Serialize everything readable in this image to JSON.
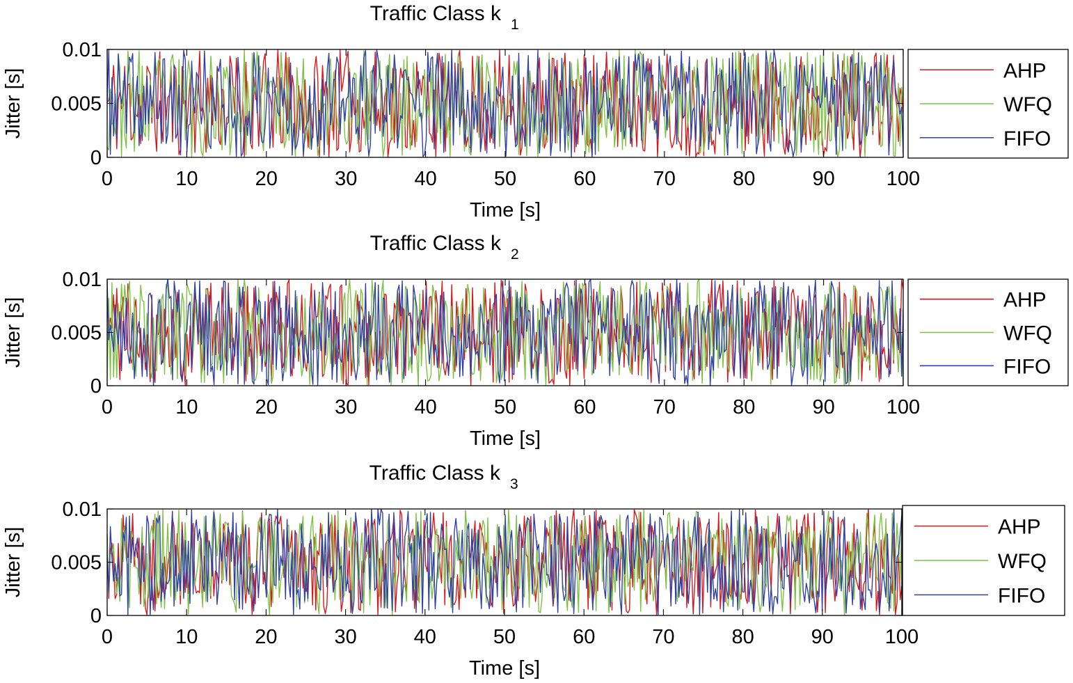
{
  "chart_data": [
    {
      "type": "line",
      "title": "Traffic Class k",
      "title_subscript": "1",
      "xlabel": "Time [s]",
      "ylabel": "Jitter [s]",
      "xlim": [
        0,
        100
      ],
      "ylim": [
        0,
        0.01
      ],
      "x_ticks": [
        "0",
        "10",
        "20",
        "30",
        "40",
        "50",
        "60",
        "70",
        "80",
        "90",
        "100"
      ],
      "y_ticks": [
        "0",
        "0.005",
        "0.01"
      ],
      "grid": false,
      "legend_position": "right",
      "samples_per_series": 500,
      "series": [
        {
          "name": "AHP",
          "color": "#d7191c",
          "seed": 11,
          "distribution": "uniform",
          "min": 0,
          "max": 0.01
        },
        {
          "name": "WFQ",
          "color": "#7dc242",
          "seed": 23,
          "distribution": "uniform",
          "min": 0,
          "max": 0.01
        },
        {
          "name": "FIFO",
          "color": "#3040a8",
          "seed": 37,
          "distribution": "uniform",
          "min": 0,
          "max": 0.01
        }
      ]
    },
    {
      "type": "line",
      "title": "Traffic Class k",
      "title_subscript": "2",
      "xlabel": "Time [s]",
      "ylabel": "Jitter [s]",
      "xlim": [
        0,
        100
      ],
      "ylim": [
        0,
        0.01
      ],
      "x_ticks": [
        "0",
        "10",
        "20",
        "30",
        "40",
        "50",
        "60",
        "70",
        "80",
        "90",
        "100"
      ],
      "y_ticks": [
        "0",
        "0.005",
        "0.01"
      ],
      "grid": false,
      "legend_position": "right",
      "samples_per_series": 500,
      "series": [
        {
          "name": "AHP",
          "color": "#d7191c",
          "seed": 41,
          "distribution": "uniform",
          "min": 0,
          "max": 0.01
        },
        {
          "name": "WFQ",
          "color": "#7dc242",
          "seed": 53,
          "distribution": "uniform",
          "min": 0,
          "max": 0.01
        },
        {
          "name": "FIFO",
          "color": "#3040a8",
          "seed": 67,
          "distribution": "uniform",
          "min": 0,
          "max": 0.01
        }
      ]
    },
    {
      "type": "line",
      "title": "Traffic Class k",
      "title_subscript": "3",
      "xlabel": "Time [s]",
      "ylabel": "Jitter [s]",
      "xlim": [
        0,
        100
      ],
      "ylim": [
        0,
        0.01
      ],
      "x_ticks": [
        "0",
        "10",
        "20",
        "30",
        "40",
        "50",
        "60",
        "70",
        "80",
        "90",
        "100"
      ],
      "y_ticks": [
        "0",
        "0.005",
        "0.01"
      ],
      "grid": false,
      "legend_position": "right",
      "samples_per_series": 500,
      "series": [
        {
          "name": "AHP",
          "color": "#d7191c",
          "seed": 71,
          "distribution": "uniform",
          "min": 0,
          "max": 0.01
        },
        {
          "name": "WFQ",
          "color": "#7dc242",
          "seed": 83,
          "distribution": "uniform",
          "min": 0,
          "max": 0.01
        },
        {
          "name": "FIFO",
          "color": "#3040a8",
          "seed": 97,
          "distribution": "uniform",
          "min": 0,
          "max": 0.01
        }
      ]
    }
  ]
}
